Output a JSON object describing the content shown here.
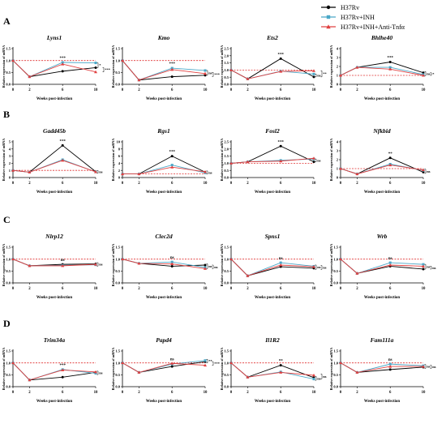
{
  "legend": {
    "placement": "top-right",
    "entries": [
      {
        "label": "H37Rv",
        "color": "#000000",
        "marker": "circle"
      },
      {
        "label": "H37Rv+INH",
        "color": "#4aa8c8",
        "marker": "square"
      },
      {
        "label": "H37Rv+INH+Anti-Tnfα",
        "color": "#e04040",
        "marker": "triangle"
      }
    ]
  },
  "rows": [
    {
      "letter": "A"
    },
    {
      "letter": "B"
    },
    {
      "letter": "C"
    },
    {
      "letter": "D"
    }
  ],
  "chart_data": [
    {
      "type": "line",
      "title": "Lyns1",
      "ylabel": "Relative expression of mRNA",
      "xlabel": "Weeks post-infection",
      "x": [
        0,
        2,
        6,
        10
      ],
      "xticks": [
        "0",
        "2",
        "6",
        "10"
      ],
      "ylim": [
        0,
        1.5
      ],
      "yticks": [
        "0.0",
        "0.5",
        "1.0",
        "1.5"
      ],
      "reference_line": 1.0,
      "top_annotation": "***",
      "right_annotations": [
        "*",
        "***"
      ],
      "series": [
        {
          "name": "H37Rv",
          "values": [
            1.0,
            0.32,
            0.55,
            0.7
          ]
        },
        {
          "name": "H37Rv+INH",
          "values": [
            1.0,
            0.32,
            0.92,
            0.9
          ]
        },
        {
          "name": "H37Rv+INH+Anti-Tnfα",
          "values": [
            1.0,
            0.32,
            0.85,
            0.52
          ]
        }
      ]
    },
    {
      "type": "line",
      "title": "Kmo",
      "ylabel": "Relative expression of mRNA",
      "xlabel": "Weeks post-infection",
      "x": [
        0,
        2,
        6,
        10
      ],
      "xticks": [
        "0",
        "2",
        "6",
        "10"
      ],
      "ylim": [
        0,
        1.5
      ],
      "yticks": [
        "0.0",
        "0.5",
        "1.0",
        "1.5"
      ],
      "reference_line": 1.0,
      "top_annotation": "***",
      "right_annotations": [
        "ns",
        "***"
      ],
      "series": [
        {
          "name": "H37Rv",
          "values": [
            1.0,
            0.18,
            0.32,
            0.38
          ]
        },
        {
          "name": "H37Rv+INH",
          "values": [
            1.0,
            0.18,
            0.68,
            0.58
          ]
        },
        {
          "name": "H37Rv+INH+Anti-Tnfα",
          "values": [
            1.0,
            0.18,
            0.62,
            0.45
          ]
        }
      ]
    },
    {
      "type": "line",
      "title": "Ets2",
      "ylabel": "Relative expression of mRNA",
      "xlabel": "Weeks post-infection",
      "x": [
        0,
        2,
        6,
        10
      ],
      "xticks": [
        "0",
        "2",
        "6",
        "10"
      ],
      "ylim": [
        0,
        2.5
      ],
      "yticks": [
        "0.0",
        "0.5",
        "1.0",
        "1.5",
        "2.0",
        "2.5"
      ],
      "reference_line": 1.0,
      "top_annotation": "***",
      "right_annotations": [
        "ns",
        "**"
      ],
      "series": [
        {
          "name": "H37Rv",
          "values": [
            1.0,
            0.38,
            1.8,
            0.52
          ]
        },
        {
          "name": "H37Rv+INH",
          "values": [
            1.0,
            0.38,
            0.92,
            0.72
          ]
        },
        {
          "name": "H37Rv+INH+Anti-Tnfα",
          "values": [
            1.0,
            0.38,
            0.9,
            0.95
          ]
        }
      ]
    },
    {
      "type": "line",
      "title": "Bhlhe40",
      "ylabel": "Relative expression of mRNA",
      "xlabel": "Weeks post-infection",
      "x": [
        0,
        2,
        6,
        10
      ],
      "xticks": [
        "0",
        "2",
        "6",
        "10"
      ],
      "ylim": [
        0,
        4
      ],
      "yticks": [
        "0",
        "1",
        "2",
        "3",
        "4"
      ],
      "reference_line": 1.0,
      "top_annotation": "***",
      "right_annotations": [
        "ns",
        "*"
      ],
      "series": [
        {
          "name": "H37Rv",
          "values": [
            1.0,
            1.9,
            2.5,
            1.3
          ]
        },
        {
          "name": "H37Rv+INH",
          "values": [
            1.0,
            1.9,
            1.9,
            1.1
          ]
        },
        {
          "name": "H37Rv+INH+Anti-Tnfα",
          "values": [
            1.0,
            1.9,
            1.7,
            1.0
          ]
        }
      ]
    },
    {
      "type": "line",
      "title": "Gadd45b",
      "ylabel": "Relative expression of mRNA",
      "xlabel": "Weeks post-infection",
      "x": [
        0,
        2,
        6,
        10
      ],
      "xticks": [
        "0",
        "2",
        "6",
        "10"
      ],
      "ylim": [
        0,
        5
      ],
      "yticks": [
        "0",
        "1",
        "2",
        "3",
        "4",
        "5"
      ],
      "reference_line": 1.0,
      "top_annotation": "***",
      "right_annotations": [
        "ns"
      ],
      "series": [
        {
          "name": "H37Rv",
          "values": [
            1.0,
            0.75,
            4.5,
            0.82
          ]
        },
        {
          "name": "H37Rv+INH",
          "values": [
            1.0,
            0.75,
            2.5,
            0.78
          ]
        },
        {
          "name": "H37Rv+INH+Anti-Tnfα",
          "values": [
            1.0,
            0.75,
            2.4,
            0.8
          ]
        }
      ]
    },
    {
      "type": "line",
      "title": "Rgs1",
      "ylabel": "Relative expression of mRNA",
      "xlabel": "Weeks post-infection",
      "x": [
        0,
        2,
        6,
        10
      ],
      "xticks": [
        "0",
        "2",
        "6",
        "10"
      ],
      "ylim": [
        0,
        10
      ],
      "yticks": [
        "0",
        "2",
        "4",
        "6",
        "8",
        "10"
      ],
      "reference_line": 1.0,
      "top_annotation": "***",
      "right_annotations": [
        "ns"
      ],
      "series": [
        {
          "name": "H37Rv",
          "values": [
            1.0,
            1.0,
            6.0,
            1.5
          ]
        },
        {
          "name": "H37Rv+INH",
          "values": [
            1.0,
            1.0,
            3.5,
            1.3
          ]
        },
        {
          "name": "H37Rv+INH+Anti-Tnfα",
          "values": [
            1.0,
            1.0,
            2.9,
            1.6
          ]
        }
      ]
    },
    {
      "type": "line",
      "title": "Fosl2",
      "ylabel": "Relative expression of mRNA",
      "xlabel": "Weeks post-infection",
      "x": [
        0,
        2,
        6,
        10
      ],
      "xticks": [
        "0",
        "2",
        "6",
        "10"
      ],
      "ylim": [
        0,
        2.5
      ],
      "yticks": [
        "0.0",
        "0.5",
        "1.0",
        "1.5",
        "2.0",
        "2.5"
      ],
      "reference_line": 1.0,
      "top_annotation": "***",
      "right_annotations": [
        "ns"
      ],
      "series": [
        {
          "name": "H37Rv",
          "values": [
            1.0,
            1.1,
            2.2,
            1.1
          ]
        },
        {
          "name": "H37Rv+INH",
          "values": [
            1.0,
            1.1,
            1.2,
            1.3
          ]
        },
        {
          "name": "H37Rv+INH+Anti-Tnfα",
          "values": [
            1.0,
            1.1,
            1.15,
            1.35
          ]
        }
      ]
    },
    {
      "type": "line",
      "title": "Nfkbid",
      "ylabel": "Relative expression of mRNA",
      "xlabel": "Weeks post-infection",
      "x": [
        0,
        2,
        6,
        10
      ],
      "xticks": [
        "0",
        "2",
        "6",
        "10"
      ],
      "ylim": [
        0,
        4
      ],
      "yticks": [
        "0",
        "1",
        "2",
        "3",
        "4"
      ],
      "reference_line": 1.0,
      "top_annotation": "**",
      "right_annotations": [
        "ns"
      ],
      "series": [
        {
          "name": "H37Rv",
          "values": [
            1.0,
            0.4,
            2.2,
            0.6
          ]
        },
        {
          "name": "H37Rv+INH",
          "values": [
            1.0,
            0.4,
            1.5,
            0.8
          ]
        },
        {
          "name": "H37Rv+INH+Anti-Tnfα",
          "values": [
            1.0,
            0.4,
            1.4,
            0.85
          ]
        }
      ]
    },
    {
      "type": "line",
      "title": "Nlrp12",
      "ylabel": "Relative expression of mRNA",
      "xlabel": "Weeks post-infection",
      "x": [
        0,
        2,
        6,
        10
      ],
      "xticks": [
        "0",
        "2",
        "6",
        "10"
      ],
      "ylim": [
        0,
        1.5
      ],
      "yticks": [
        "0.0",
        "0.5",
        "1.0",
        "1.5"
      ],
      "reference_line": 1.0,
      "top_annotation": "ns",
      "right_annotations": [
        "ns"
      ],
      "series": [
        {
          "name": "H37Rv",
          "values": [
            1.0,
            0.72,
            0.78,
            0.8
          ]
        },
        {
          "name": "H37Rv+INH",
          "values": [
            1.0,
            0.72,
            0.74,
            0.76
          ]
        },
        {
          "name": "H37Rv+INH+Anti-Tnfα",
          "values": [
            1.0,
            0.72,
            0.72,
            0.78
          ]
        }
      ]
    },
    {
      "type": "line",
      "title": "Clec2d",
      "ylabel": "Relative expression of mRNA",
      "xlabel": "Weeks post-infection",
      "x": [
        0,
        2,
        6,
        10
      ],
      "xticks": [
        "0",
        "2",
        "6",
        "10"
      ],
      "ylim": [
        0,
        1.5
      ],
      "yticks": [
        "0.0",
        "0.5",
        "1.0",
        "1.5"
      ],
      "reference_line": 1.0,
      "top_annotation": "ns",
      "right_annotations": [
        "ns",
        "ns"
      ],
      "series": [
        {
          "name": "H37Rv",
          "values": [
            1.0,
            0.82,
            0.7,
            0.75
          ]
        },
        {
          "name": "H37Rv+INH",
          "values": [
            1.0,
            0.82,
            0.88,
            0.65
          ]
        },
        {
          "name": "H37Rv+INH+Anti-Tnfα",
          "values": [
            1.0,
            0.82,
            0.8,
            0.6
          ]
        }
      ]
    },
    {
      "type": "line",
      "title": "Spns1",
      "ylabel": "Relative expression of mRNA",
      "xlabel": "Weeks post-infection",
      "x": [
        0,
        2,
        6,
        10
      ],
      "xticks": [
        "0",
        "2",
        "6",
        "10"
      ],
      "ylim": [
        0,
        1.5
      ],
      "yticks": [
        "0.0",
        "0.5",
        "1.0",
        "1.5"
      ],
      "reference_line": 1.0,
      "top_annotation": "ns",
      "right_annotations": [
        "ns",
        "ns"
      ],
      "series": [
        {
          "name": "H37Rv",
          "values": [
            1.0,
            0.3,
            0.68,
            0.62
          ]
        },
        {
          "name": "H37Rv+INH",
          "values": [
            1.0,
            0.3,
            0.85,
            0.7
          ]
        },
        {
          "name": "H37Rv+INH+Anti-Tnfα",
          "values": [
            1.0,
            0.3,
            0.75,
            0.68
          ]
        }
      ]
    },
    {
      "type": "line",
      "title": "Wrb",
      "ylabel": "Relative expression of mRNA",
      "xlabel": "Weeks post-infection",
      "x": [
        0,
        2,
        6,
        10
      ],
      "xticks": [
        "0",
        "2",
        "6",
        "10"
      ],
      "ylim": [
        0,
        1.5
      ],
      "yticks": [
        "0.0",
        "0.5",
        "1.0",
        "1.5"
      ],
      "reference_line": 1.0,
      "top_annotation": "ns",
      "right_annotations": [
        "ns",
        "ns"
      ],
      "series": [
        {
          "name": "H37Rv",
          "values": [
            1.0,
            0.4,
            0.7,
            0.58
          ]
        },
        {
          "name": "H37Rv+INH",
          "values": [
            1.0,
            0.4,
            0.85,
            0.78
          ]
        },
        {
          "name": "H37Rv+INH+Anti-Tnfα",
          "values": [
            1.0,
            0.4,
            0.75,
            0.7
          ]
        }
      ]
    },
    {
      "type": "line",
      "title": "Trim34a",
      "ylabel": "Relative expression of mRNA",
      "xlabel": "Weeks post-infection",
      "x": [
        0,
        2,
        6,
        10
      ],
      "xticks": [
        "0",
        "2",
        "6",
        "10"
      ],
      "ylim": [
        0,
        1.5
      ],
      "yticks": [
        "0.0",
        "0.5",
        "1.0",
        "1.5"
      ],
      "reference_line": 1.0,
      "top_annotation": "***",
      "right_annotations": [
        "ns"
      ],
      "series": [
        {
          "name": "H37Rv",
          "values": [
            1.0,
            0.28,
            0.4,
            0.6
          ]
        },
        {
          "name": "H37Rv+INH",
          "values": [
            1.0,
            0.28,
            0.72,
            0.56
          ]
        },
        {
          "name": "H37Rv+INH+Anti-Tnfα",
          "values": [
            1.0,
            0.28,
            0.7,
            0.62
          ]
        }
      ]
    },
    {
      "type": "line",
      "title": "Papd4",
      "ylabel": "Relative expression of mRNA",
      "xlabel": "Weeks post-infection",
      "x": [
        0,
        2,
        6,
        10
      ],
      "xticks": [
        "0",
        "2",
        "6",
        "10"
      ],
      "ylim": [
        0,
        1.5
      ],
      "yticks": [
        "0.0",
        "0.5",
        "1.0",
        "1.5"
      ],
      "reference_line": 1.0,
      "top_annotation": "ns",
      "right_annotations": [
        "**",
        "***"
      ],
      "series": [
        {
          "name": "H37Rv",
          "values": [
            1.0,
            0.6,
            0.85,
            1.05
          ]
        },
        {
          "name": "H37Rv+INH",
          "values": [
            1.0,
            0.6,
            0.95,
            1.1
          ]
        },
        {
          "name": "H37Rv+INH+Anti-Tnfα",
          "values": [
            1.0,
            0.6,
            0.98,
            0.9
          ]
        }
      ]
    },
    {
      "type": "line",
      "title": "Il1R2",
      "ylabel": "Relative expression of mRNA",
      "xlabel": "Weeks post-infection",
      "x": [
        0,
        2,
        6,
        10
      ],
      "xticks": [
        "0",
        "2",
        "6",
        "10"
      ],
      "ylim": [
        0,
        1.5
      ],
      "yticks": [
        "0.0",
        "0.5",
        "1.0",
        "1.5"
      ],
      "reference_line": 1.0,
      "top_annotation": "**",
      "right_annotations": [
        "ns",
        "ns"
      ],
      "series": [
        {
          "name": "H37Rv",
          "values": [
            1.0,
            0.4,
            0.9,
            0.38
          ]
        },
        {
          "name": "H37Rv+INH",
          "values": [
            1.0,
            0.4,
            0.62,
            0.32
          ]
        },
        {
          "name": "H37Rv+INH+Anti-Tnfα",
          "values": [
            1.0,
            0.4,
            0.6,
            0.48
          ]
        }
      ]
    },
    {
      "type": "line",
      "title": "Fam111a",
      "ylabel": "Relative expression of mRNA",
      "xlabel": "Weeks post-infection",
      "x": [
        0,
        2,
        6,
        10
      ],
      "xticks": [
        "0",
        "2",
        "6",
        "10"
      ],
      "ylim": [
        0,
        1.5
      ],
      "yticks": [
        "0.0",
        "0.5",
        "1.0",
        "1.5"
      ],
      "reference_line": 1.0,
      "top_annotation": "ns",
      "right_annotations": [
        "ns",
        "ns"
      ],
      "series": [
        {
          "name": "H37Rv",
          "values": [
            1.0,
            0.6,
            0.72,
            0.82
          ]
        },
        {
          "name": "H37Rv+INH",
          "values": [
            1.0,
            0.6,
            0.95,
            0.88
          ]
        },
        {
          "name": "H37Rv+INH+Anti-Tnfα",
          "values": [
            1.0,
            0.6,
            0.85,
            0.85
          ]
        }
      ]
    }
  ]
}
